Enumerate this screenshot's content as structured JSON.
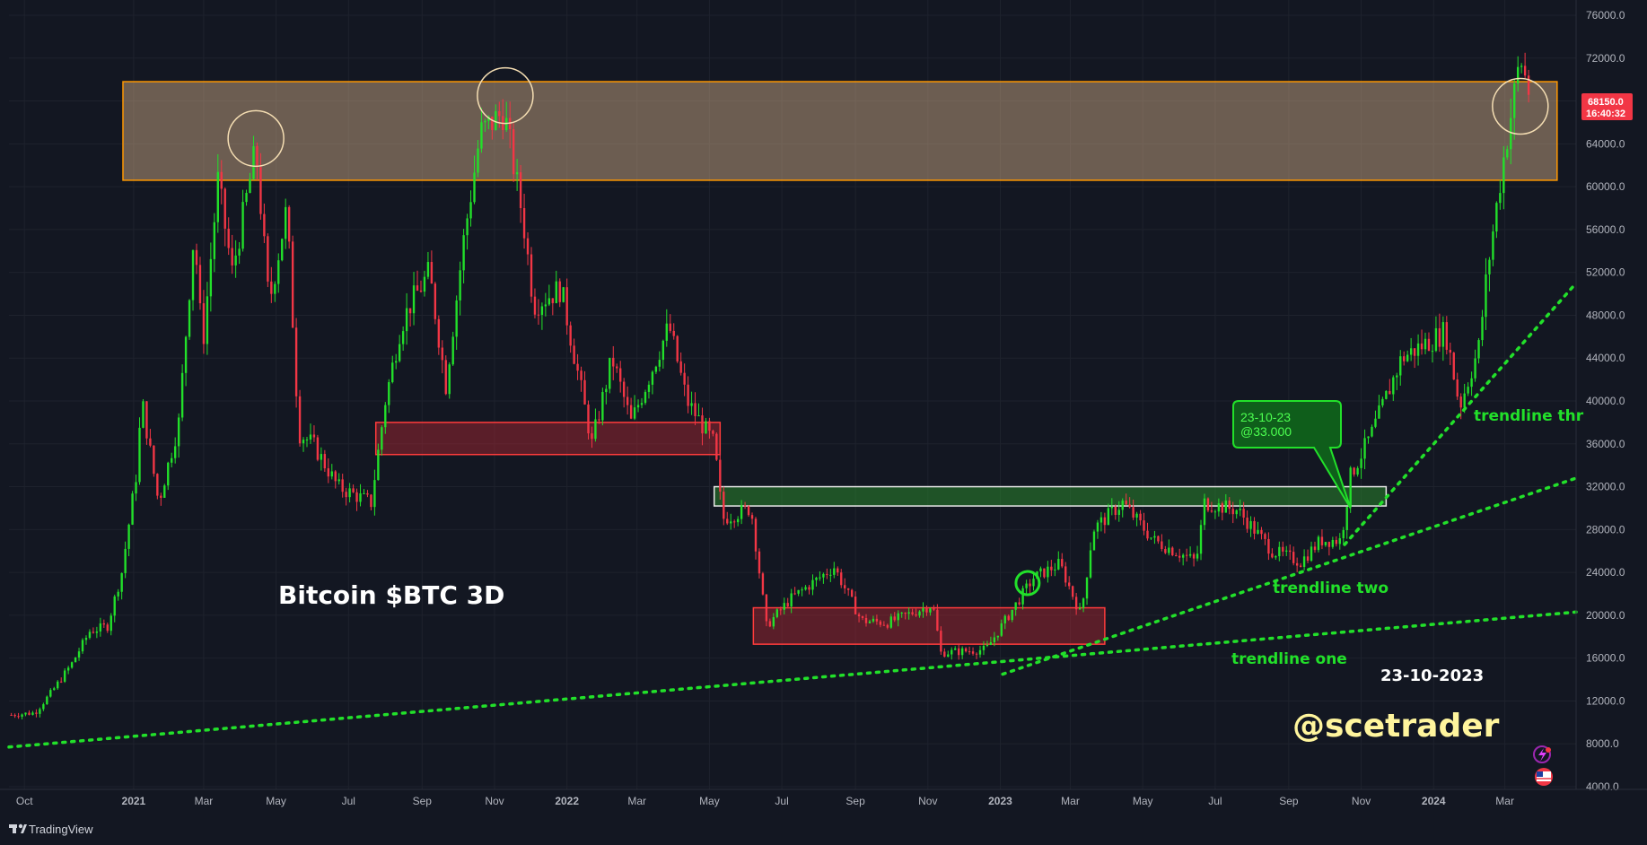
{
  "chart_data": {
    "type": "candlestick",
    "title": "Bitcoin $BTC 3D",
    "date_label": "23-10-2023",
    "watermark": "@scetrader",
    "branding": "TradingView",
    "y_ticks": [
      "76000.0",
      "72000.0",
      "68000.0",
      "64000.0",
      "60000.0",
      "56000.0",
      "52000.0",
      "48000.0",
      "44000.0",
      "40000.0",
      "36000.0",
      "32000.0",
      "28000.0",
      "24000.0",
      "20000.0",
      "16000.0",
      "12000.0",
      "8000.0",
      "4000.0"
    ],
    "x_ticks": [
      "Oct",
      "2021",
      "Mar",
      "May",
      "Jul",
      "Sep",
      "Nov",
      "2022",
      "Mar",
      "May",
      "Jul",
      "Sep",
      "Nov",
      "2023",
      "Mar",
      "May",
      "Jul",
      "Sep",
      "Nov",
      "2024",
      "Mar"
    ],
    "ylim": [
      4000,
      76000
    ],
    "xlim": [
      "2020-09-18",
      "2024-04-30"
    ],
    "last_price": "68150.0",
    "countdown": "16:40:32",
    "colors": {
      "up": "#22e02a",
      "down": "#f23645",
      "background": "#131722"
    },
    "price_path": [
      [
        "2020-09-20",
        10700
      ],
      [
        "2020-10-10",
        10900
      ],
      [
        "2020-10-25",
        13000
      ],
      [
        "2020-11-10",
        15500
      ],
      [
        "2020-11-25",
        18500
      ],
      [
        "2020-12-10",
        19000
      ],
      [
        "2020-12-22",
        24000
      ],
      [
        "2021-01-03",
        33000
      ],
      [
        "2021-01-08",
        40000
      ],
      [
        "2021-01-22",
        30500
      ],
      [
        "2021-02-08",
        38000
      ],
      [
        "2021-02-21",
        56000
      ],
      [
        "2021-02-28",
        45000
      ],
      [
        "2021-03-13",
        60500
      ],
      [
        "2021-03-25",
        52000
      ],
      [
        "2021-04-14",
        63500
      ],
      [
        "2021-04-25",
        49000
      ],
      [
        "2021-05-10",
        58000
      ],
      [
        "2021-05-20",
        37000
      ],
      [
        "2021-06-01",
        36000
      ],
      [
        "2021-06-22",
        32000
      ],
      [
        "2021-07-20",
        30500
      ],
      [
        "2021-08-01",
        40000
      ],
      [
        "2021-08-14",
        47000
      ],
      [
        "2021-08-22",
        49000
      ],
      [
        "2021-09-07",
        52000
      ],
      [
        "2021-09-21",
        41500
      ],
      [
        "2021-10-06",
        55000
      ],
      [
        "2021-10-20",
        65000
      ],
      [
        "2021-11-09",
        67000
      ],
      [
        "2021-11-25",
        57000
      ],
      [
        "2021-12-04",
        49000
      ],
      [
        "2021-12-27",
        50500
      ],
      [
        "2022-01-22",
        36000
      ],
      [
        "2022-02-08",
        44000
      ],
      [
        "2022-02-24",
        38000
      ],
      [
        "2022-03-28",
        47000
      ],
      [
        "2022-04-12",
        40000
      ],
      [
        "2022-05-05",
        36000
      ],
      [
        "2022-05-12",
        29000
      ],
      [
        "2022-06-05",
        30000
      ],
      [
        "2022-06-18",
        19000
      ],
      [
        "2022-07-08",
        21500
      ],
      [
        "2022-08-14",
        24500
      ],
      [
        "2022-09-06",
        19500
      ],
      [
        "2022-09-28",
        19300
      ],
      [
        "2022-11-05",
        21000
      ],
      [
        "2022-11-12",
        16500
      ],
      [
        "2022-12-20",
        16800
      ],
      [
        "2023-01-14",
        21000
      ],
      [
        "2023-01-29",
        23500
      ],
      [
        "2023-02-20",
        24800
      ],
      [
        "2023-03-10",
        20000
      ],
      [
        "2023-03-20",
        28000
      ],
      [
        "2023-04-14",
        30500
      ],
      [
        "2023-05-10",
        27000
      ],
      [
        "2023-06-15",
        25000
      ],
      [
        "2023-06-22",
        30500
      ],
      [
        "2023-07-20",
        29800
      ],
      [
        "2023-08-18",
        26000
      ],
      [
        "2023-09-11",
        25000
      ],
      [
        "2023-09-28",
        27000
      ],
      [
        "2023-10-15",
        27000
      ],
      [
        "2023-10-23",
        33000
      ],
      [
        "2023-11-10",
        37000
      ],
      [
        "2023-12-05",
        44000
      ],
      [
        "2024-01-11",
        46500
      ],
      [
        "2024-01-23",
        39500
      ],
      [
        "2024-02-08",
        45000
      ],
      [
        "2024-02-15",
        52000
      ],
      [
        "2024-02-28",
        62000
      ],
      [
        "2024-03-05",
        66000
      ],
      [
        "2024-03-14",
        72000
      ],
      [
        "2024-03-23",
        68150
      ]
    ],
    "zones": [
      {
        "name": "resistance",
        "x0": "2020-12-23",
        "x1": "2024-04-14",
        "y0": 60600,
        "y1": 69800,
        "fill": "#d9b38c",
        "stroke": "#ff9800"
      },
      {
        "name": "red-zone-upper",
        "x0": "2021-07-24",
        "x1": "2022-05-10",
        "y0": 35000,
        "y1": 38000,
        "fill": "#b22833",
        "stroke": "#ff3b3b"
      },
      {
        "name": "green-zone",
        "x0": "2022-05-05",
        "x1": "2023-11-22",
        "y0": 30200,
        "y1": 32000,
        "fill": "#2e9e2e",
        "stroke": "#e8e8e8"
      },
      {
        "name": "red-zone-lower",
        "x0": "2022-06-07",
        "x1": "2023-03-30",
        "y0": 17300,
        "y1": 20700,
        "fill": "#b22833",
        "stroke": "#ff3b3b"
      }
    ],
    "trendlines": [
      {
        "name": "trendline one",
        "x0": "2020-09-18",
        "y0": 7700,
        "x1": "2024-04-30",
        "y1": 20300
      },
      {
        "name": "trendline two",
        "x0": "2023-01-03",
        "y0": 14500,
        "x1": "2024-04-30",
        "y1": 32800
      },
      {
        "name": "trendline three",
        "x0": "2023-10-18",
        "y0": 26600,
        "x1": "2024-04-30",
        "y1": 51000
      }
    ],
    "trendline_labels": [
      "trendline one",
      "trendline two",
      "trendline thr"
    ],
    "highlight_circles": [
      {
        "x": "2021-04-14",
        "y": 64500
      },
      {
        "x": "2021-11-10",
        "y": 68500
      },
      {
        "x": "2023-01-24",
        "y": 23000
      },
      {
        "x": "2024-03-14",
        "y": 67500
      }
    ],
    "callout": {
      "line1": "23-10-23",
      "line2": "@33.000",
      "target_date": "2023-10-23",
      "target_price": 30000
    }
  }
}
